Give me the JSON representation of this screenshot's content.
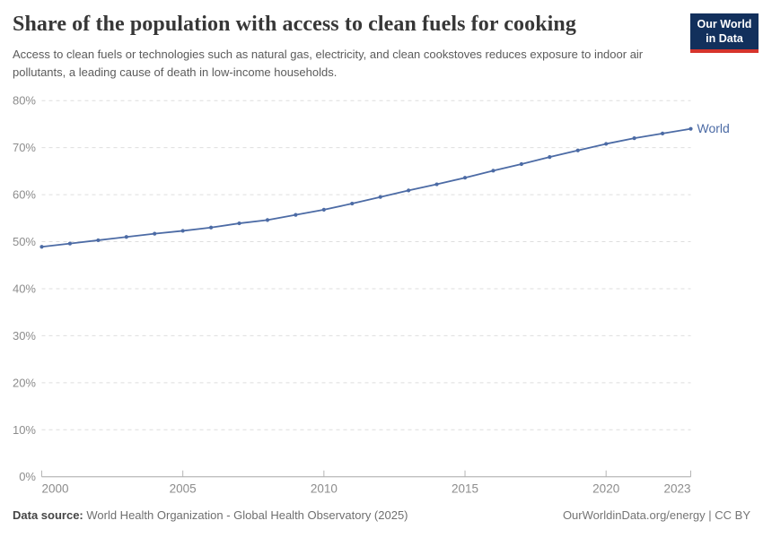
{
  "header": {
    "title": "Share of the population with access to clean fuels for cooking",
    "subtitle": "Access to clean fuels or technologies such as natural gas, electricity, and clean cookstoves reduces exposure to indoor air pollutants, a leading cause of death in low-income households.",
    "logo": {
      "line1": "Our World",
      "line2": "in Data"
    }
  },
  "chart_data": {
    "type": "line",
    "title": "Share of the population with access to clean fuels for cooking",
    "x": [
      2000,
      2001,
      2002,
      2003,
      2004,
      2005,
      2006,
      2007,
      2008,
      2009,
      2010,
      2011,
      2012,
      2013,
      2014,
      2015,
      2016,
      2017,
      2018,
      2019,
      2020,
      2021,
      2022,
      2023
    ],
    "series": [
      {
        "name": "World",
        "values": [
          48.9,
          49.6,
          50.3,
          51.0,
          51.7,
          52.3,
          53.0,
          53.9,
          54.6,
          55.7,
          56.8,
          58.1,
          59.5,
          60.9,
          62.2,
          63.6,
          65.1,
          66.5,
          68.0,
          69.4,
          70.8,
          72.0,
          73.0,
          74.0
        ]
      }
    ],
    "xlabel": "",
    "ylabel": "",
    "ylim": [
      0,
      80
    ],
    "xlim": [
      2000,
      2023
    ],
    "y_ticks": [
      0,
      10,
      20,
      30,
      40,
      50,
      60,
      70,
      80
    ],
    "y_tick_suffix": "%",
    "x_ticks": [
      2000,
      2005,
      2010,
      2015,
      2020,
      2023
    ],
    "grid": "horizontal-dashed",
    "legend_position": "end-of-line-label",
    "end_label": "World"
  },
  "colors": {
    "line": "#4c6ba5",
    "grid": "#dedede",
    "axis": "#a8a8a8",
    "tick": "#b5b5b5",
    "tick_label": "#8c8c8c",
    "logo_bg": "#12305c",
    "logo_red": "#d6342c"
  },
  "footer": {
    "source_label": "Data source:",
    "source_text": " World Health Organization - Global Health Observatory (2025)",
    "right_text": "OurWorldinData.org/energy | CC BY"
  }
}
